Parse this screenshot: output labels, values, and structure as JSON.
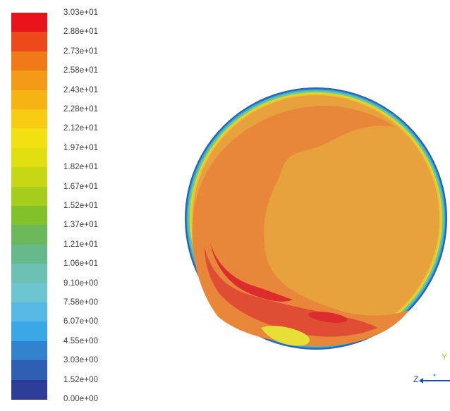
{
  "legend": {
    "ticks": [
      "3.03e+01",
      "2.88e+01",
      "2.73e+01",
      "2.58e+01",
      "2.43e+01",
      "2.28e+01",
      "2.12e+01",
      "1.97e+01",
      "1.82e+01",
      "1.67e+01",
      "1.52e+01",
      "1.37e+01",
      "1.21e+01",
      "1.06e+01",
      "9.10e+00",
      "7.58e+00",
      "6.07e+00",
      "4.55e+00",
      "3.03e+00",
      "1.52e+00",
      "0.00e+00"
    ],
    "colors": [
      "#e8131b",
      "#ec4a1a",
      "#f07a18",
      "#f39a17",
      "#f6b414",
      "#f8cc12",
      "#f3e010",
      "#e0df10",
      "#c6d815",
      "#a6cc1c",
      "#82c12a",
      "#6ab85a",
      "#66b98a",
      "#6cc0b4",
      "#6ec5d2",
      "#58b9e6",
      "#3aa8e6",
      "#3182cc",
      "#2f5fb2",
      "#2e3e98"
    ]
  },
  "contour": {
    "outer_ring_colors": [
      "#2c63b2",
      "#33aede",
      "#74c68e",
      "#d7dc2a",
      "#f3bd33"
    ],
    "field_colors": {
      "bulk": "#e8a23d",
      "mid": "#e8873a",
      "hot": "#e04d35",
      "peak": "#dc2c2d",
      "bright": "#e6df38"
    }
  },
  "axes": {
    "y_label": "Y",
    "z_label": "Z",
    "y_color": "#b7c41c",
    "z_color": "#1c4fb5"
  }
}
